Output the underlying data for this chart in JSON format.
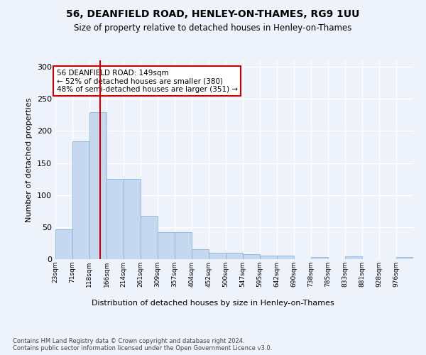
{
  "title": "56, DEANFIELD ROAD, HENLEY-ON-THAMES, RG9 1UU",
  "subtitle": "Size of property relative to detached houses in Henley-on-Thames",
  "xlabel": "Distribution of detached houses by size in Henley-on-Thames",
  "ylabel": "Number of detached properties",
  "bar_color": "#c5d8f0",
  "bar_edge_color": "#7aadd4",
  "background_color": "#eef2fa",
  "annotation_box_color": "#cc0000",
  "annotation_text": "56 DEANFIELD ROAD: 149sqm\n← 52% of detached houses are smaller (380)\n48% of semi-detached houses are larger (351) →",
  "vline_x": 149,
  "vline_color": "#cc0000",
  "categories": [
    "23sqm",
    "71sqm",
    "118sqm",
    "166sqm",
    "214sqm",
    "261sqm",
    "309sqm",
    "357sqm",
    "404sqm",
    "452sqm",
    "500sqm",
    "547sqm",
    "595sqm",
    "642sqm",
    "690sqm",
    "738sqm",
    "785sqm",
    "833sqm",
    "881sqm",
    "928sqm",
    "976sqm"
  ],
  "bin_edges": [
    23,
    71,
    118,
    166,
    214,
    261,
    309,
    357,
    404,
    452,
    500,
    547,
    595,
    642,
    690,
    738,
    785,
    833,
    881,
    928,
    976,
    1024
  ],
  "values": [
    47,
    184,
    229,
    125,
    125,
    67,
    42,
    42,
    15,
    10,
    10,
    8,
    6,
    5,
    0,
    3,
    0,
    4,
    0,
    0,
    3
  ],
  "ylim": [
    0,
    310
  ],
  "yticks": [
    0,
    50,
    100,
    150,
    200,
    250,
    300
  ],
  "footnote": "Contains HM Land Registry data © Crown copyright and database right 2024.\nContains public sector information licensed under the Open Government Licence v3.0."
}
